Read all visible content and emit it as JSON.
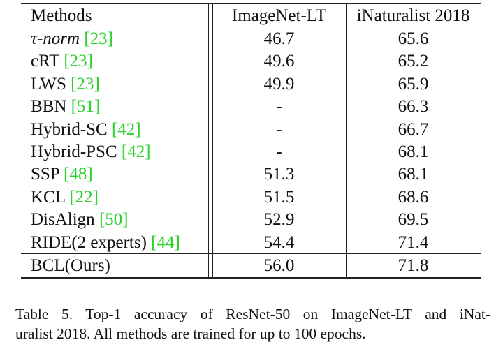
{
  "table": {
    "headers": {
      "method": "Methods",
      "imagenet": "ImageNet-LT",
      "inat": "iNaturalist 2018"
    },
    "rows": [
      {
        "method": "τ-norm ",
        "ref": "[23]",
        "imagenet": "46.7",
        "inat": "65.6"
      },
      {
        "method": "cRT ",
        "ref": "[23]",
        "imagenet": "49.6",
        "inat": "65.2"
      },
      {
        "method": "LWS ",
        "ref": "[23]",
        "imagenet": "49.9",
        "inat": "65.9"
      },
      {
        "method": "BBN ",
        "ref": "[51]",
        "imagenet": "-",
        "inat": "66.3"
      },
      {
        "method": "Hybrid-SC ",
        "ref": "[42]",
        "imagenet": "-",
        "inat": "66.7"
      },
      {
        "method": "Hybrid-PSC ",
        "ref": "[42]",
        "imagenet": "-",
        "inat": "68.1"
      },
      {
        "method": "SSP ",
        "ref": "[48]",
        "imagenet": "51.3",
        "inat": "68.1"
      },
      {
        "method": "KCL ",
        "ref": "[22]",
        "imagenet": "51.5",
        "inat": "68.6"
      },
      {
        "method": "DisAlign ",
        "ref": "[50]",
        "imagenet": "52.9",
        "inat": "69.5"
      },
      {
        "method": "RIDE(2 experts) ",
        "ref": "[44]",
        "imagenet": "54.4",
        "inat": "71.4"
      },
      {
        "method": "BCL(Ours)",
        "ref": "",
        "imagenet": "56.0",
        "inat": "71.8"
      }
    ]
  },
  "caption": {
    "line1": "Table 5. Top-1 accuracy of ResNet-50 on ImageNet-LT and iNat-",
    "line2": "uralist 2018. All methods are trained for up to 100 epochs."
  },
  "colors": {
    "citation": "#2bd12b"
  }
}
